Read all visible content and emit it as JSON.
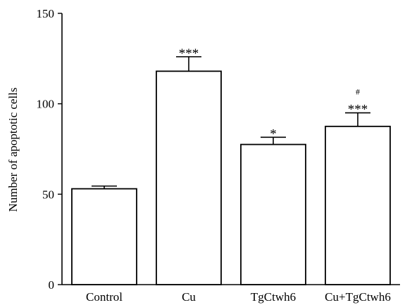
{
  "chart_data": {
    "type": "bar",
    "title": "",
    "xlabel": "",
    "ylabel": "Number of apoptotic cells",
    "ylim": [
      0,
      150
    ],
    "yticks": [
      0,
      50,
      100,
      150
    ],
    "grid": false,
    "categories": [
      "Control",
      "Cu",
      "TgCtwh6",
      "Cu+TgCtwh6"
    ],
    "values": [
      53,
      118,
      77.5,
      87.5
    ],
    "error_upper": [
      1.5,
      8,
      4,
      7.5
    ],
    "annotations": [
      {
        "category": "Control",
        "lines": []
      },
      {
        "category": "Cu",
        "lines": [
          "***"
        ]
      },
      {
        "category": "TgCtwh6",
        "lines": [
          "*"
        ]
      },
      {
        "category": "Cu+TgCtwh6",
        "lines": [
          "#",
          "***"
        ]
      }
    ],
    "bar_fill": "#ffffff",
    "bar_stroke": "#000000"
  }
}
